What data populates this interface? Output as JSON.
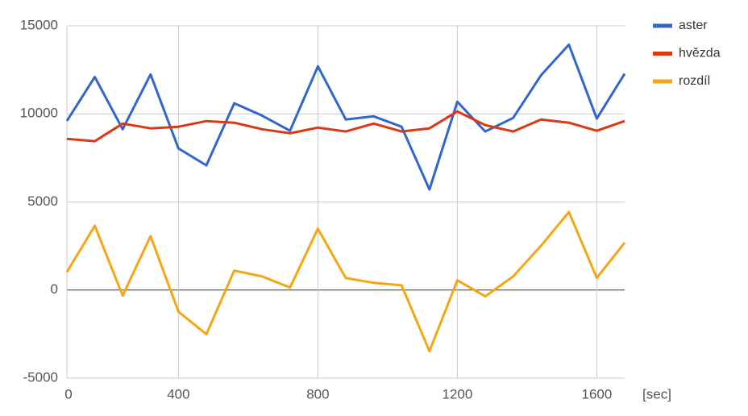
{
  "chart_data": {
    "type": "line",
    "x": [
      80,
      160,
      240,
      320,
      400,
      480,
      560,
      640,
      720,
      800,
      880,
      960,
      1040,
      1120,
      1200,
      1280,
      1360,
      1440,
      1520,
      1600,
      1680
    ],
    "series": [
      {
        "name": "aster",
        "color": "#3366cc",
        "values": [
          9600,
          12100,
          9130,
          12240,
          8040,
          7080,
          10600,
          9900,
          9040,
          12700,
          9680,
          9860,
          9270,
          5710,
          10690,
          9000,
          9770,
          12190,
          13930,
          9730,
          12280
        ]
      },
      {
        "name": "hvězda",
        "color": "#dc3912",
        "values": [
          8580,
          8450,
          9450,
          9180,
          9270,
          9590,
          9500,
          9130,
          8900,
          9220,
          9000,
          9450,
          9000,
          9180,
          10140,
          9360,
          9000,
          9680,
          9500,
          9040,
          9590
        ]
      },
      {
        "name": "rozdíl",
        "color": "#f4a614",
        "values": [
          1020,
          3650,
          -320,
          3060,
          -1230,
          -2510,
          1100,
          770,
          140,
          3480,
          680,
          410,
          270,
          -3470,
          550,
          -360,
          770,
          2510,
          4430,
          690,
          2690
        ]
      }
    ],
    "x_label": "[sec]",
    "xlim": [
      80,
      1680
    ],
    "xticks": [
      {
        "value": 80,
        "label": "0"
      },
      400,
      800,
      1200,
      1600
    ],
    "ylim": [
      -5000,
      15000
    ],
    "yticks": [
      -5000,
      0,
      5000,
      10000,
      15000
    ],
    "grid": true,
    "legend": "right"
  }
}
